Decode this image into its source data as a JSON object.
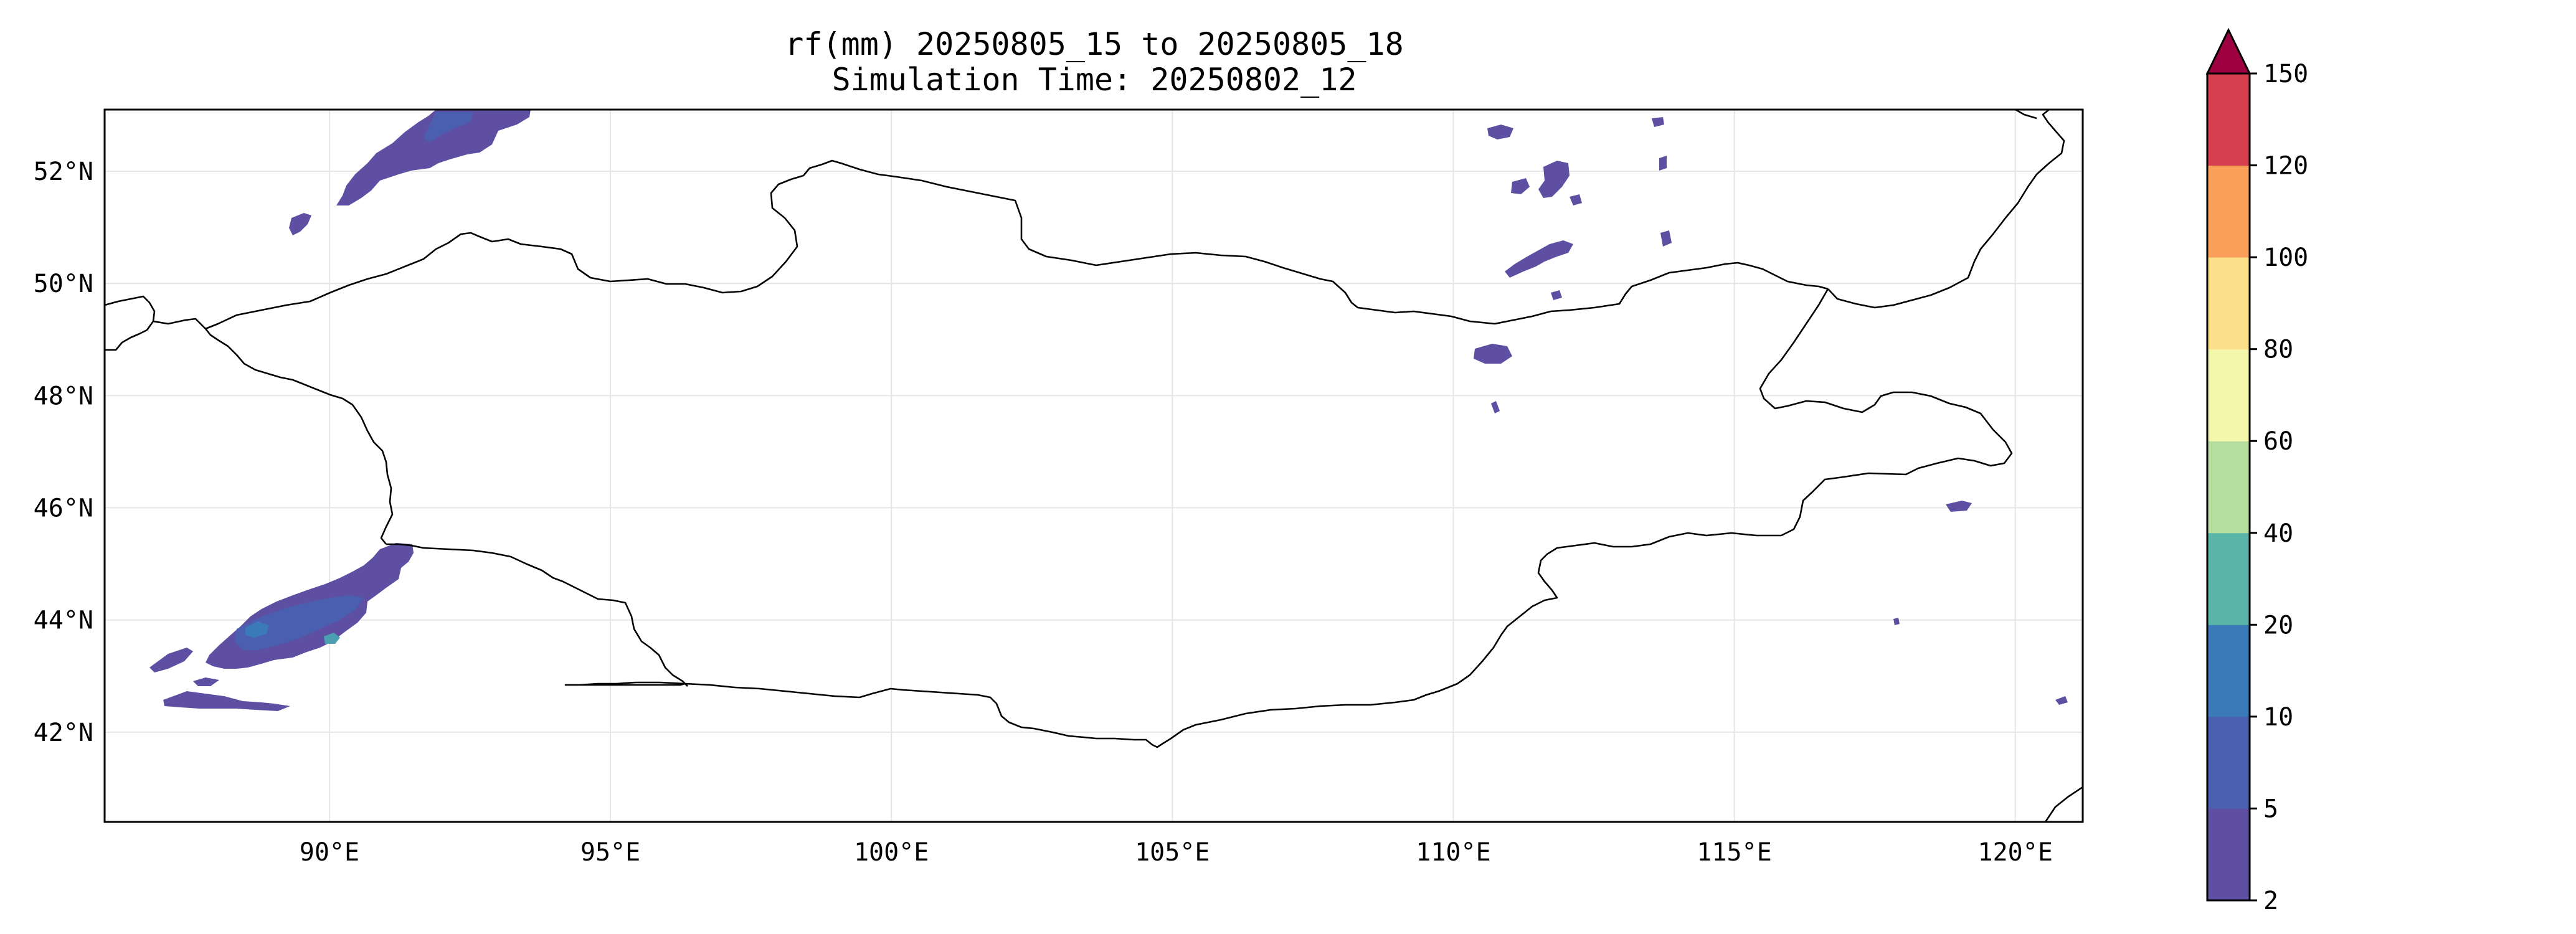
{
  "title": {
    "line1": "rf(mm) 20250805_15 to 20250805_18",
    "line2": "Simulation Time: 20250802_12"
  },
  "map": {
    "lon_range": [
      86,
      121.2
    ],
    "lat_range": [
      40.4,
      53.1
    ],
    "lon_ticks": [
      {
        "value": 90,
        "label": "90°E"
      },
      {
        "value": 95,
        "label": "95°E"
      },
      {
        "value": 100,
        "label": "100°E"
      },
      {
        "value": 105,
        "label": "105°E"
      },
      {
        "value": 110,
        "label": "110°E"
      },
      {
        "value": 115,
        "label": "115°E"
      },
      {
        "value": 120,
        "label": "120°E"
      }
    ],
    "lat_ticks": [
      {
        "value": 52,
        "label": "52°N"
      },
      {
        "value": 50,
        "label": "50°N"
      },
      {
        "value": 48,
        "label": "48°N"
      },
      {
        "value": 46,
        "label": "46°N"
      },
      {
        "value": 44,
        "label": "44°N"
      },
      {
        "value": 42,
        "label": "42°N"
      }
    ],
    "gridlines": true
  },
  "colorbar": {
    "levels": [
      "2",
      "5",
      "10",
      "20",
      "40",
      "60",
      "80",
      "100",
      "120",
      "150"
    ],
    "colors": [
      "#5e4fa2",
      "#4a5fb0",
      "#3b7ab8",
      "#5ab4a8",
      "#b6df9f",
      "#f3f7ab",
      "#fde18a",
      "#fba05b",
      "#d6404e"
    ],
    "extend_color": "#9e0142",
    "extend": "max"
  },
  "chart_data": {
    "type": "heatmap",
    "variable": "rf(mm)",
    "title": "rf(mm) 20250805_15 to 20250805_18",
    "subtitle": "Simulation Time: 20250802_12",
    "xlim": [
      86,
      121.2
    ],
    "ylim": [
      40.4,
      53.1
    ],
    "xticks": [
      "90°E",
      "95°E",
      "100°E",
      "105°E",
      "110°E",
      "115°E",
      "120°E"
    ],
    "yticks": [
      "42°N",
      "44°N",
      "46°N",
      "48°N",
      "50°N",
      "52°N"
    ],
    "levels": [
      2,
      5,
      10,
      20,
      40,
      60,
      80,
      100,
      120,
      150
    ],
    "grid": true,
    "regions": [
      {
        "area": "northwest",
        "lon": [
          90.1,
          93.6
        ],
        "lat": [
          51.3,
          53.1
        ],
        "level": "2-10"
      },
      {
        "area": "southwest",
        "lon": [
          86.7,
          91.5
        ],
        "lat": [
          42.3,
          45.2
        ],
        "level": "2-20"
      },
      {
        "area": "northeast",
        "lon": [
          110.2,
          113.8
        ],
        "lat": [
          47.5,
          52.8
        ],
        "level": "2-5"
      },
      {
        "area": "east",
        "lon": [
          118.5,
          121.2
        ],
        "lat": [
          42.5,
          46.0
        ],
        "level": "2-5"
      }
    ]
  }
}
